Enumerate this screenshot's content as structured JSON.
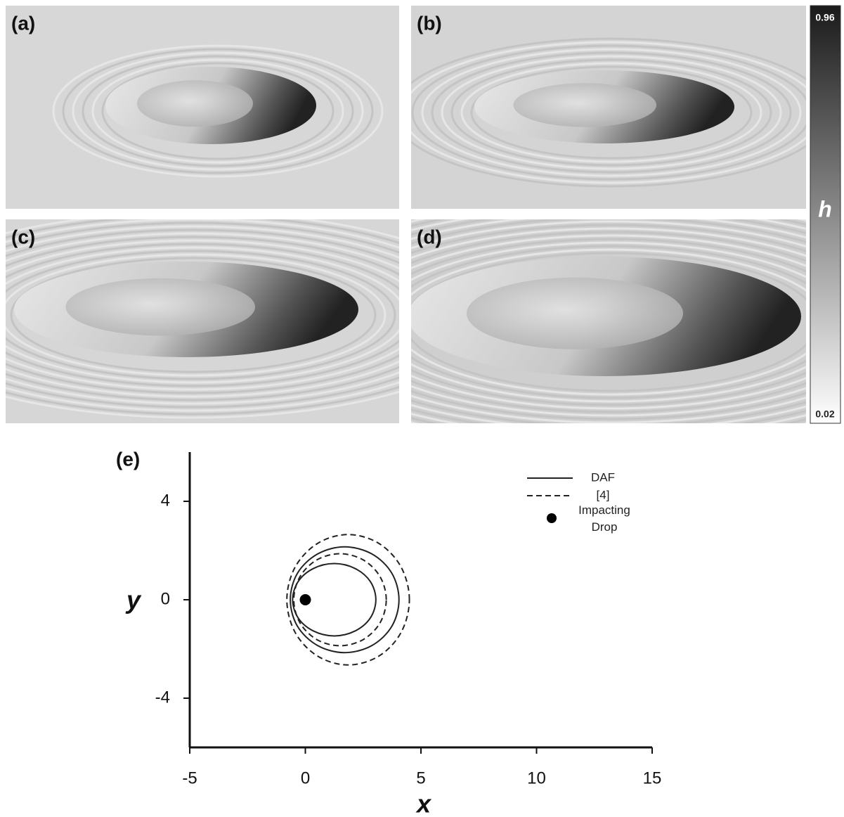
{
  "panels": [
    {
      "label": "(a)"
    },
    {
      "label": "(b)"
    },
    {
      "label": "(c)"
    },
    {
      "label": "(d)"
    }
  ],
  "colorbar": {
    "label": "h",
    "lim": [
      0.02,
      0.96
    ],
    "ticks": [
      0.96,
      0.02
    ]
  },
  "chart_data": {
    "type": "contour",
    "panel_label": "(e)",
    "xlabel": "x",
    "ylabel": "y",
    "xlim": [
      -5,
      15
    ],
    "ylim": [
      -6,
      6
    ],
    "xticks": [
      -5,
      0,
      5,
      10,
      15
    ],
    "yticks": [
      -4,
      0,
      4
    ],
    "legend": "upper right",
    "series": [
      {
        "name": "DAF",
        "color": "#222222",
        "dash": false,
        "curves": [
          {
            "x": [
              4.05,
              3.74,
              2.88,
              1.7,
              0.53,
              -0.34,
              -0.65,
              -0.34,
              0.53,
              1.7,
              2.88,
              3.74
            ],
            "y": [
              0,
              1.08,
              1.86,
              2.15,
              1.86,
              1.08,
              0,
              -1.08,
              -1.86,
              -2.15,
              -1.86,
              -1.08
            ]
          },
          {
            "x": [
              3.05,
              2.81,
              2.15,
              1.25,
              0.35,
              -0.31,
              -0.55,
              -0.31,
              0.35,
              1.25,
              2.15,
              2.81
            ],
            "y": [
              0,
              0.74,
              1.27,
              1.47,
              1.27,
              0.74,
              0,
              -0.74,
              -1.27,
              -1.47,
              -1.27,
              -0.74
            ]
          }
        ]
      },
      {
        "name": "[4]",
        "color": "#222222",
        "dash": true,
        "curves": [
          {
            "x": [
              4.5,
              4.14,
              3.18,
              1.85,
              0.53,
              -0.44,
              -0.8,
              -0.44,
              0.53,
              1.85,
              3.18,
              4.14
            ],
            "y": [
              0,
              1.33,
              2.29,
              2.65,
              2.29,
              1.33,
              0,
              -1.33,
              -2.29,
              -2.65,
              -2.29,
              -1.33
            ]
          },
          {
            "x": [
              3.5,
              3.23,
              2.5,
              1.5,
              0.5,
              -0.23,
              -0.5,
              -0.23,
              0.5,
              1.5,
              2.5,
              3.23
            ],
            "y": [
              0,
              0.94,
              1.62,
              1.87,
              1.62,
              0.94,
              0,
              -0.94,
              -1.62,
              -1.87,
              -1.62,
              -0.94
            ]
          }
        ]
      }
    ],
    "points": {
      "name": "Impacting Drop",
      "color": "#000000",
      "x": [
        0
      ],
      "y": [
        0
      ]
    }
  }
}
